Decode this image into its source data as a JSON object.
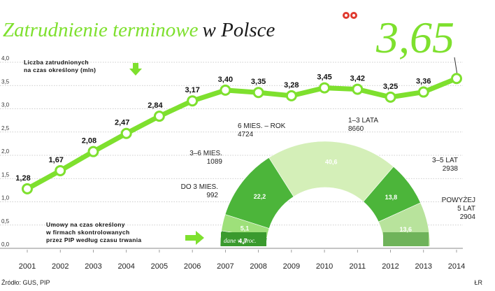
{
  "chart_data": [
    {
      "type": "line",
      "title": "Zatrudnienie terminowe w Polsce",
      "series_label_line1": "Liczba zatrudnionych",
      "series_label_line2": "na czas określony (mln)",
      "highlight_value": "3,65",
      "x": [
        "2001",
        "2002",
        "2003",
        "2004",
        "2005",
        "2006",
        "2007",
        "2008",
        "2009",
        "2010",
        "2011",
        "2012",
        "2013",
        "2014"
      ],
      "values": [
        1.28,
        1.67,
        2.08,
        2.47,
        2.84,
        3.17,
        3.4,
        3.35,
        3.28,
        3.45,
        3.42,
        3.25,
        3.36,
        3.65
      ],
      "value_labels": [
        "1,28",
        "1,67",
        "2,08",
        "2,47",
        "2,84",
        "3,17",
        "3,40",
        "3,35",
        "3,28",
        "3,45",
        "3,42",
        "3,25",
        "3,36",
        ""
      ],
      "ylim": [
        0,
        4
      ],
      "yticks": [
        "0,0",
        "0,5",
        "1,0",
        "1,5",
        "2,0",
        "2,5",
        "3,0",
        "3,5",
        "4,0"
      ],
      "grid": true,
      "line_color": "#7ee02e"
    },
    {
      "type": "pie",
      "title_line1": "Umowy na czas określony",
      "title_line2": "w firmach skontrolowanych",
      "title_line3": "przez PIP według czasu trwania",
      "unit_note": "dane w proc.",
      "segments": [
        {
          "label_line1": "DO 3 MIES.",
          "label_line2": "992",
          "value": 4.7,
          "value_label": "4,7",
          "color": "#3a9a2e"
        },
        {
          "label_line1": "3–6 MIES.",
          "label_line2": "1089",
          "value": 5.1,
          "value_label": "5,1",
          "color": "#9ee07a"
        },
        {
          "label_line1": "6 MIES. – ROK",
          "label_line2": "4724",
          "value": 22.2,
          "value_label": "22,2",
          "color": "#4cb53a"
        },
        {
          "label_line1": "1–3 LATA",
          "label_line2": "8660",
          "value": 40.6,
          "value_label": "40,6",
          "color": "#d4efb8"
        },
        {
          "label_line1": "3–5 LAT",
          "label_line2": "2938",
          "value": 13.8,
          "value_label": "13,8",
          "color": "#4cb53a"
        },
        {
          "label_line1": "POWYŻEJ",
          "label_line2": "5 LAT",
          "label_line3": "2904",
          "value": 13.6,
          "value_label": "13,6",
          "color": "#b8e39c"
        }
      ]
    }
  ],
  "source": "Źródło: GUS, PIP",
  "author": "ŁR",
  "colors": {
    "accent": "#7ee02e",
    "dark_green": "#3a9a2e",
    "light_green": "#d4efb8"
  }
}
